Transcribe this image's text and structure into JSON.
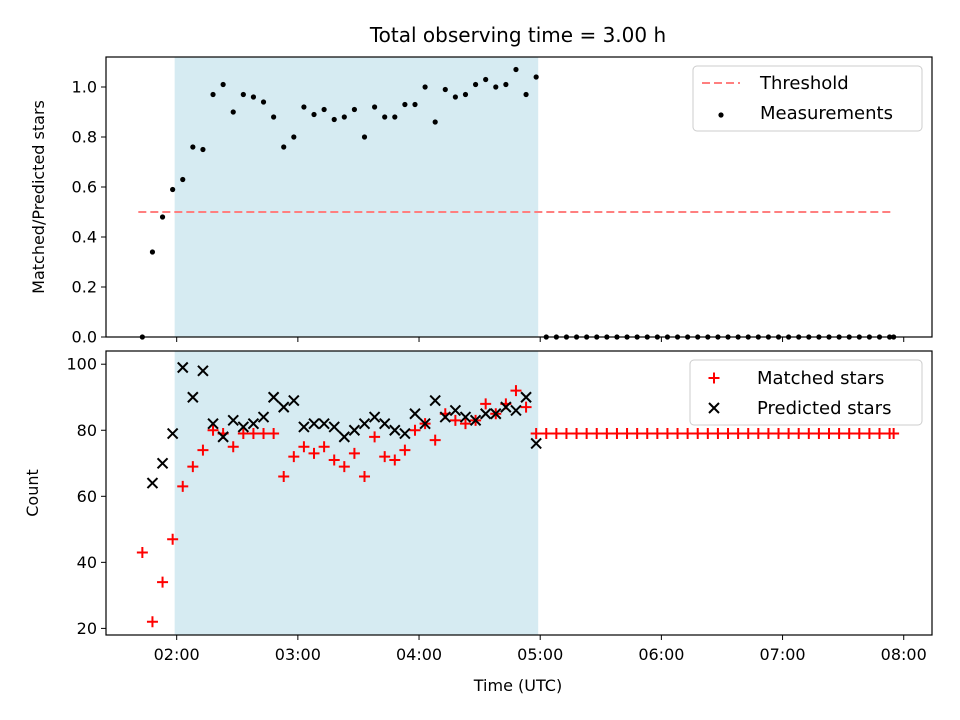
{
  "title": "Total observing time = 3.00 h",
  "colors": {
    "span": "#add8e6",
    "threshold": "#ff7f7f",
    "measurements": "#000000",
    "matched": "#ff0000",
    "predicted": "#000000"
  },
  "chart_data": [
    {
      "type": "scatter",
      "ylabel": "Matched/Predicted stars",
      "ylim": [
        0,
        1.12
      ],
      "xlim": [
        "01:25",
        "08:14"
      ],
      "yticks": [
        0.0,
        0.2,
        0.4,
        0.6,
        0.8,
        1.0
      ],
      "ytick_labels": [
        "0.0",
        "0.2",
        "0.4",
        "0.6",
        "0.8",
        "1.0"
      ],
      "shaded_span": [
        "01:59",
        "04:59"
      ],
      "legend": {
        "placement": "upper right",
        "entries": [
          "Threshold",
          "Measurements"
        ]
      },
      "threshold": {
        "name": "Threshold",
        "y": 0.5,
        "x_start": "01:41",
        "x_end": "07:55",
        "style": "dashed"
      },
      "series": [
        {
          "name": "Measurements",
          "marker": "point",
          "x": [
            "01:43",
            "01:48",
            "01:53",
            "01:58",
            "02:03",
            "02:08",
            "02:13",
            "02:18",
            "02:23",
            "02:28",
            "02:33",
            "02:38",
            "02:43",
            "02:48",
            "02:53",
            "02:58",
            "03:03",
            "03:08",
            "03:13",
            "03:18",
            "03:23",
            "03:28",
            "03:33",
            "03:38",
            "03:43",
            "03:48",
            "03:53",
            "03:58",
            "04:03",
            "04:08",
            "04:13",
            "04:18",
            "04:23",
            "04:28",
            "04:33",
            "04:38",
            "04:43",
            "04:48",
            "04:53",
            "04:58",
            "05:03",
            "05:08",
            "05:13",
            "05:18",
            "05:23",
            "05:28",
            "05:33",
            "05:38",
            "05:43",
            "05:48",
            "05:53",
            "05:58",
            "06:03",
            "06:08",
            "06:13",
            "06:18",
            "06:23",
            "06:28",
            "06:33",
            "06:38",
            "06:43",
            "06:48",
            "06:53",
            "06:58",
            "07:03",
            "07:08",
            "07:13",
            "07:18",
            "07:23",
            "07:28",
            "07:33",
            "07:38",
            "07:43",
            "07:48",
            "07:53",
            "07:55"
          ],
          "y": [
            0.0,
            0.34,
            0.48,
            0.59,
            0.63,
            0.76,
            0.75,
            0.97,
            1.01,
            0.9,
            0.97,
            0.96,
            0.94,
            0.88,
            0.76,
            0.8,
            0.92,
            0.89,
            0.91,
            0.87,
            0.88,
            0.91,
            0.8,
            0.92,
            0.88,
            0.88,
            0.93,
            0.93,
            1.0,
            0.86,
            0.99,
            0.96,
            0.97,
            1.01,
            1.03,
            1.0,
            1.01,
            1.07,
            0.97,
            1.04,
            0,
            0,
            0,
            0,
            0,
            0,
            0,
            0,
            0,
            0,
            0,
            0,
            0,
            0,
            0,
            0,
            0,
            0,
            0,
            0,
            0,
            0,
            0,
            0,
            0,
            0,
            0,
            0,
            0,
            0,
            0,
            0,
            0,
            0,
            0,
            0
          ]
        }
      ]
    },
    {
      "type": "scatter",
      "xlabel": "Time (UTC)",
      "ylabel": "Count",
      "ylim": [
        18,
        104
      ],
      "xlim": [
        "01:25",
        "08:14"
      ],
      "yticks": [
        20,
        40,
        60,
        80,
        100
      ],
      "ytick_labels": [
        "20",
        "40",
        "60",
        "80",
        "100"
      ],
      "xticks": [
        "02:00",
        "03:00",
        "04:00",
        "05:00",
        "06:00",
        "07:00",
        "08:00"
      ],
      "xtick_labels": [
        "02:00",
        "03:00",
        "04:00",
        "05:00",
        "06:00",
        "07:00",
        "08:00"
      ],
      "shaded_span": [
        "01:59",
        "04:59"
      ],
      "legend": {
        "placement": "upper right",
        "entries": [
          "Matched stars",
          "Predicted stars"
        ]
      },
      "series": [
        {
          "name": "Matched stars",
          "marker": "plus",
          "x": [
            "01:43",
            "01:48",
            "01:53",
            "01:58",
            "02:03",
            "02:08",
            "02:13",
            "02:18",
            "02:23",
            "02:28",
            "02:33",
            "02:38",
            "02:43",
            "02:48",
            "02:53",
            "02:58",
            "03:03",
            "03:08",
            "03:13",
            "03:18",
            "03:23",
            "03:28",
            "03:33",
            "03:38",
            "03:43",
            "03:48",
            "03:53",
            "03:58",
            "04:03",
            "04:08",
            "04:13",
            "04:18",
            "04:23",
            "04:28",
            "04:33",
            "04:38",
            "04:43",
            "04:48",
            "04:53",
            "04:58",
            "05:03",
            "05:08",
            "05:13",
            "05:18",
            "05:23",
            "05:28",
            "05:33",
            "05:38",
            "05:43",
            "05:48",
            "05:53",
            "05:58",
            "06:03",
            "06:08",
            "06:13",
            "06:18",
            "06:23",
            "06:28",
            "06:33",
            "06:38",
            "06:43",
            "06:48",
            "06:53",
            "06:58",
            "07:03",
            "07:08",
            "07:13",
            "07:18",
            "07:23",
            "07:28",
            "07:33",
            "07:38",
            "07:43",
            "07:48",
            "07:53",
            "07:55"
          ],
          "y": [
            43,
            22,
            34,
            47,
            63,
            69,
            74,
            80,
            79,
            75,
            79,
            79,
            79,
            79,
            66,
            72,
            75,
            73,
            75,
            71,
            69,
            73,
            66,
            78,
            72,
            71,
            74,
            80,
            82,
            77,
            85,
            83,
            82,
            83,
            88,
            85,
            88,
            92,
            87,
            79,
            79,
            79,
            79,
            79,
            79,
            79,
            79,
            79,
            79,
            79,
            79,
            79,
            79,
            79,
            79,
            79,
            79,
            79,
            79,
            79,
            79,
            79,
            79,
            79,
            79,
            79,
            79,
            79,
            79,
            79,
            79,
            79,
            79,
            79,
            79,
            79
          ]
        },
        {
          "name": "Predicted stars",
          "marker": "x",
          "x": [
            "01:48",
            "01:53",
            "01:58",
            "02:03",
            "02:08",
            "02:13",
            "02:18",
            "02:23",
            "02:28",
            "02:33",
            "02:38",
            "02:43",
            "02:48",
            "02:53",
            "02:58",
            "03:03",
            "03:08",
            "03:13",
            "03:18",
            "03:23",
            "03:28",
            "03:33",
            "03:38",
            "03:43",
            "03:48",
            "03:53",
            "03:58",
            "04:03",
            "04:08",
            "04:13",
            "04:18",
            "04:23",
            "04:28",
            "04:33",
            "04:38",
            "04:43",
            "04:48",
            "04:53",
            "04:58"
          ],
          "y": [
            64,
            70,
            79,
            99,
            90,
            98,
            82,
            78,
            83,
            81,
            82,
            84,
            90,
            87,
            89,
            81,
            82,
            82,
            81,
            78,
            80,
            82,
            84,
            82,
            80,
            79,
            85,
            82,
            89,
            84,
            86,
            84,
            83,
            85,
            85,
            87,
            86,
            90,
            76
          ]
        }
      ]
    }
  ]
}
